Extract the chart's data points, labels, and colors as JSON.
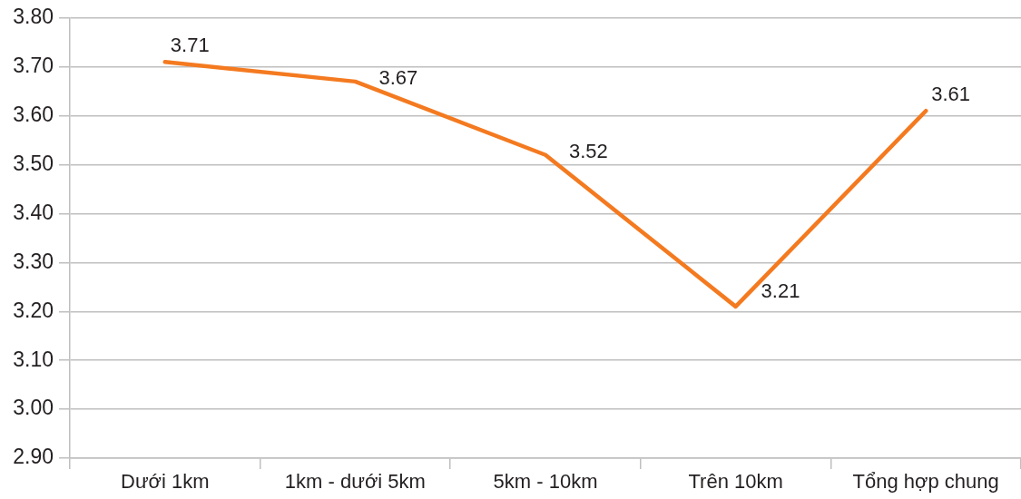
{
  "chart_data": {
    "type": "line",
    "categories": [
      "Dưới 1km",
      "1km - dưới 5km",
      "5km - 10km",
      "Trên 10km",
      "Tổng hợp chung"
    ],
    "values": [
      3.71,
      3.67,
      3.52,
      3.21,
      3.61
    ],
    "color": "#f47a20",
    "ylim": [
      2.9,
      3.8
    ],
    "yticks": [
      {
        "value": 2.9,
        "label": "2.90"
      },
      {
        "value": 3.0,
        "label": "3.00"
      },
      {
        "value": 3.1,
        "label": "3.10"
      },
      {
        "value": 3.2,
        "label": "3.20"
      },
      {
        "value": 3.3,
        "label": "3.30"
      },
      {
        "value": 3.4,
        "label": "3.40"
      },
      {
        "value": 3.5,
        "label": "3.50"
      },
      {
        "value": 3.6,
        "label": "3.60"
      },
      {
        "value": 3.7,
        "label": "3.70"
      },
      {
        "value": 3.8,
        "label": "3.80"
      }
    ],
    "grid": "y",
    "legend": false,
    "marker": "none",
    "line_style": "solid",
    "data_labels": true
  }
}
